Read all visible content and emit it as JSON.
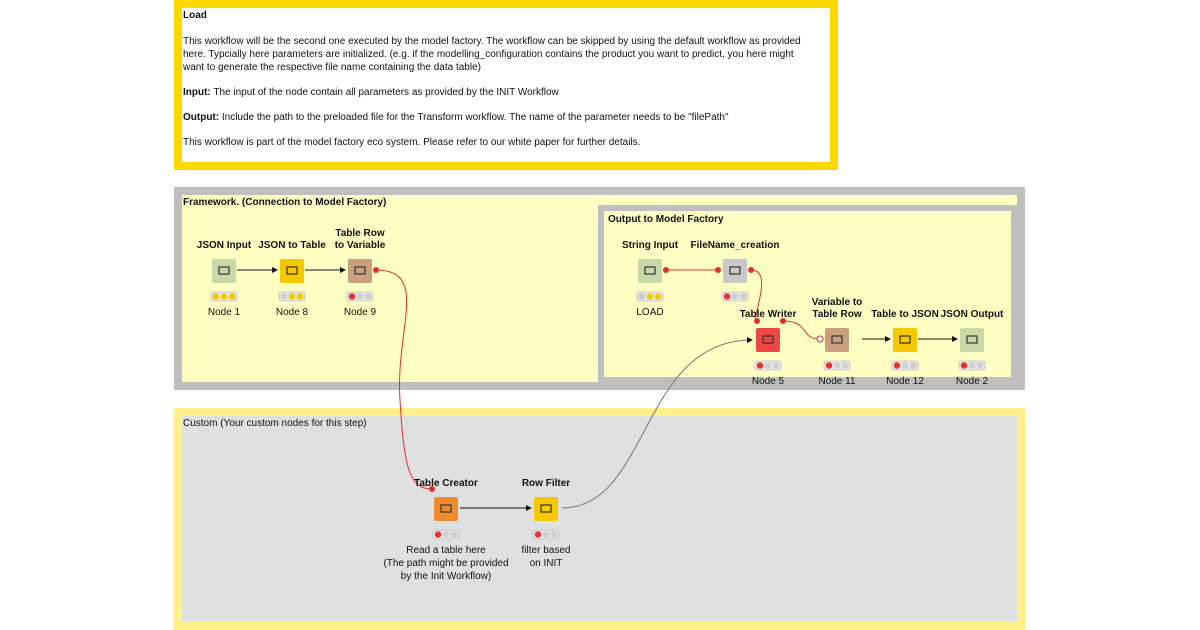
{
  "load_note": {
    "title": "Load",
    "intro": [
      "This workflow will be the second one executed by the model factory. The workflow can be skipped by using the default workflow as provided",
      "here. Typcially here parameters are initialized. (e.g. if the modelling_configuration contains the product you want to predict, you here might",
      "want to generate the respective file name containing the data table)"
    ],
    "input": {
      "label": "Input:",
      "text": "The input of the node contain all parameters as provided by the INIT Workflow"
    },
    "output": {
      "label": "Output:",
      "text": "Include the path to the preloaded file for the Transform workflow. The name of the parameter needs to be \"filePath\""
    },
    "footer": "This workflow is part of the model factory eco system. Please refer to our white paper for further details."
  },
  "framework": {
    "title": "Framework. (Connection to Model Factory)"
  },
  "output_group": {
    "title": "Output to Model Factory"
  },
  "custom": {
    "title": "Custom (Your custom nodes for this step)"
  },
  "nodes": [
    {
      "name": [
        "JSON Input"
      ],
      "label": [
        "Node 1"
      ]
    },
    {
      "name": [
        "JSON to Table"
      ],
      "label": [
        "Node 8"
      ]
    },
    {
      "name": [
        "Table Row",
        "to Variable"
      ],
      "label": [
        "Node 9"
      ]
    },
    {
      "name": [
        "String Input"
      ],
      "label": [
        "LOAD"
      ]
    },
    {
      "name": [
        "FileName_creation"
      ]
    },
    {
      "name": [
        "Table Writer"
      ],
      "label": [
        "Node 5"
      ]
    },
    {
      "name": [
        "Variable to",
        "Table Row"
      ],
      "label": [
        "Node 11"
      ]
    },
    {
      "name": [
        "Table to JSON"
      ],
      "label": [
        "Node 12"
      ]
    },
    {
      "name": [
        "JSON Output"
      ],
      "label": [
        "Node 2"
      ]
    },
    {
      "name": [
        "Table Creator"
      ],
      "label": [
        "Read a table here",
        "(The path might be provided",
        "by the Init Workflow)"
      ]
    },
    {
      "name": [
        "Row Filter"
      ],
      "label": [
        "filter based",
        "on INIT"
      ]
    }
  ]
}
